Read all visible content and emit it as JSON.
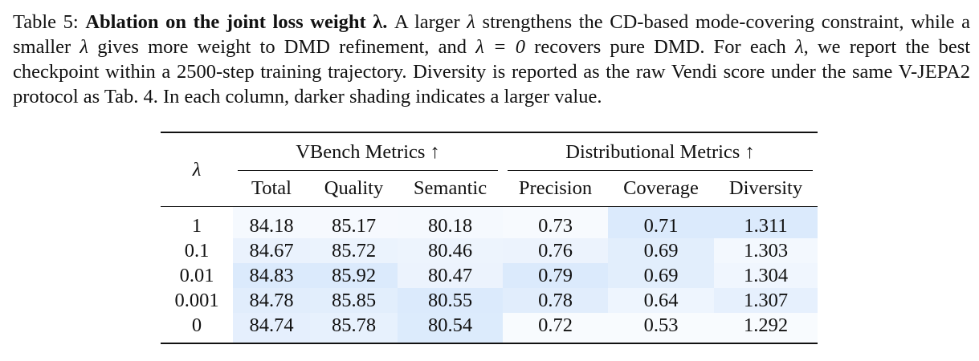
{
  "caption": {
    "label": "Table 5:",
    "title": "Ablation on the joint loss weight λ.",
    "text_1": "A larger",
    "lambda": "λ",
    "text_2": "strengthens the CD-based mode-covering constraint, while a smaller",
    "text_3": "gives more weight to DMD refinement, and",
    "eq": "λ = 0",
    "text_4": "recovers pure DMD. For each",
    "text_5": ", we report the best checkpoint within a 2500-step training trajectory. Diversity is reported as the raw Vendi score under the same V-JEPA2 protocol as Tab. 4. In each column, darker shading indicates a larger value."
  },
  "table": {
    "lambda_header": "λ",
    "group_vbench": "VBench Metrics ↑",
    "group_dist": "Distributional Metrics ↑",
    "columns": [
      "Total",
      "Quality",
      "Semantic",
      "Precision",
      "Coverage",
      "Diversity"
    ],
    "rows": [
      {
        "lambda": "1",
        "values": [
          "84.18",
          "85.17",
          "80.18",
          "0.73",
          "0.71",
          "1.311"
        ],
        "shades": [
          "#f5f9fe",
          "#f6f9fe",
          "#f5f9fe",
          "#f7fafe",
          "#dbeafc",
          "#dbeafc"
        ]
      },
      {
        "lambda": "0.1",
        "values": [
          "84.67",
          "85.72",
          "80.46",
          "0.76",
          "0.69",
          "1.303"
        ],
        "shades": [
          "#eaf2fd",
          "#ebf3fd",
          "#edf4fd",
          "#ecf3fd",
          "#e2eefc",
          "#f3f8fe"
        ]
      },
      {
        "lambda": "0.01",
        "values": [
          "84.83",
          "85.92",
          "80.47",
          "0.79",
          "0.69",
          "1.304"
        ],
        "shades": [
          "#dbeafc",
          "#dbeafc",
          "#ecf3fd",
          "#dbeafc",
          "#e2eefc",
          "#f0f6fe"
        ]
      },
      {
        "lambda": "0.001",
        "values": [
          "84.78",
          "85.85",
          "80.55",
          "0.78",
          "0.64",
          "1.307"
        ],
        "shades": [
          "#e1edfc",
          "#e2eefc",
          "#dbeafc",
          "#e1edfc",
          "#eef5fe",
          "#e6f0fd"
        ]
      },
      {
        "lambda": "0",
        "values": [
          "84.74",
          "85.78",
          "80.54",
          "0.72",
          "0.53",
          "1.292"
        ],
        "shades": [
          "#e5effd",
          "#e7f1fd",
          "#dcebfc",
          "#f8fbfe",
          "#f8fbfe",
          "#f8fbfe"
        ]
      }
    ]
  }
}
